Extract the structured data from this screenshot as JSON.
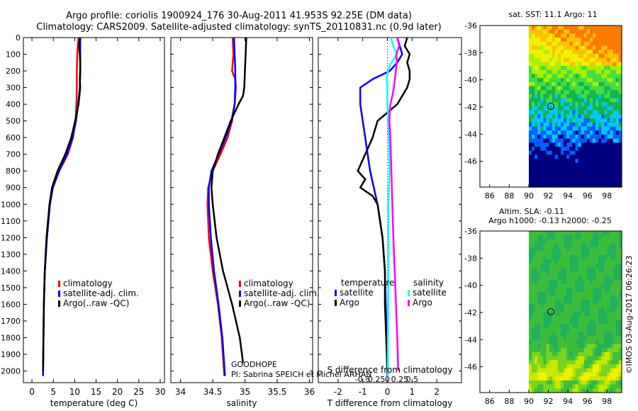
{
  "header": {
    "title": "Argo profile: coriolis 1900924_176 30-Aug-2011 41.953S 92.25E (DM data)",
    "subtitle": "Climatology: CARS2009. Satellite-adjusted climatology: synTS_20110831.nc (0.9d later)"
  },
  "colors": {
    "climatology": "#ff0000",
    "satellite": "#0000ff",
    "argo": "#000000",
    "satellite_salinity": "#00ffff",
    "argo_salinity": "#ff00ff"
  },
  "annotations": {
    "project": "GOODHOPE",
    "pi": "PI: Sabrina SPEICH et Michel ARHAN",
    "credit": "©IMOS 03-Aug-2017 06:26:23"
  },
  "chart_data": [
    {
      "type": "line",
      "name": "temperature-profile",
      "xlabel": "temperature (deg C)",
      "ylabel": "",
      "xlim": [
        -2,
        31
      ],
      "ylim": [
        2070,
        0
      ],
      "xticks": [
        0,
        5,
        10,
        15,
        20,
        25,
        30
      ],
      "yticks": [
        0,
        100,
        200,
        300,
        400,
        500,
        600,
        700,
        800,
        900,
        1000,
        1100,
        1200,
        1300,
        1400,
        1500,
        1600,
        1700,
        1800,
        1900,
        2000
      ],
      "legend": [
        "climatology",
        "satellite-adj. clim.",
        "Argo(..raw -QC)"
      ],
      "legend_position": "lower-center",
      "series": [
        {
          "name": "climatology",
          "depth": [
            0,
            100,
            200,
            300,
            400,
            500,
            600,
            700,
            800,
            900,
            1000,
            1200,
            1400,
            1600,
            1800,
            2030
          ],
          "values": [
            10.9,
            10.6,
            10.5,
            10.5,
            10.4,
            10.2,
            9.6,
            8.4,
            6.4,
            4.9,
            4.2,
            3.5,
            3.0,
            2.8,
            2.7,
            2.6
          ]
        },
        {
          "name": "satellite-adj. clim.",
          "depth": [
            0,
            100,
            200,
            300,
            400,
            500,
            600,
            700,
            800,
            900,
            1000,
            1200,
            1400,
            1600,
            1800,
            2030
          ],
          "values": [
            11.3,
            11.3,
            11.3,
            11.2,
            10.8,
            10.3,
            9.5,
            8.2,
            6.3,
            4.9,
            4.2,
            3.5,
            3.0,
            2.8,
            2.7,
            2.6
          ]
        },
        {
          "name": "Argo(..raw -QC)",
          "depth": [
            0,
            50,
            100,
            150,
            200,
            250,
            300,
            350,
            400,
            500,
            600,
            700,
            800,
            900,
            1000,
            1200,
            1400,
            1600,
            1800,
            2000
          ],
          "values": [
            11.2,
            11.0,
            11.2,
            11.3,
            11.3,
            11.2,
            11.3,
            11.1,
            10.9,
            10.1,
            9.2,
            7.8,
            6.0,
            4.7,
            4.1,
            3.4,
            3.0,
            2.8,
            2.7,
            2.6
          ]
        }
      ]
    },
    {
      "type": "line",
      "name": "salinity-profile",
      "xlabel": "salinity",
      "ylabel": "",
      "xlim": [
        33.85,
        36.05
      ],
      "ylim": [
        2070,
        0
      ],
      "xticks": [
        34,
        34.5,
        35,
        35.5,
        36
      ],
      "legend": [
        "climatology",
        "satellite-adj. clim.",
        "Argo(..raw -QC)"
      ],
      "legend_position": "lower-center",
      "series": [
        {
          "name": "climatology",
          "depth": [
            0,
            100,
            150,
            200,
            250,
            300,
            400,
            500,
            600,
            700,
            800,
            900,
            1000,
            1200,
            1400,
            1600,
            1800,
            2030
          ],
          "values": [
            34.81,
            34.82,
            34.81,
            34.8,
            34.85,
            34.86,
            34.84,
            34.8,
            34.73,
            34.62,
            34.5,
            34.43,
            34.42,
            34.44,
            34.5,
            34.58,
            34.64,
            34.68
          ]
        },
        {
          "name": "satellite-adj. clim.",
          "depth": [
            0,
            100,
            200,
            300,
            400,
            500,
            600,
            700,
            800,
            900,
            1000,
            1200,
            1400,
            1600,
            1800,
            2030
          ],
          "values": [
            34.83,
            34.84,
            34.85,
            34.85,
            34.84,
            34.79,
            34.7,
            34.59,
            34.48,
            34.44,
            34.44,
            34.47,
            34.52,
            34.59,
            34.65,
            34.69
          ]
        },
        {
          "name": "Argo(..raw -QC)",
          "depth": [
            0,
            100,
            200,
            300,
            350,
            400,
            500,
            600,
            700,
            800,
            900,
            1000,
            1200,
            1400,
            1600,
            1800,
            1950
          ],
          "values": [
            35.02,
            35.01,
            35.0,
            34.99,
            34.97,
            34.9,
            34.78,
            34.68,
            34.58,
            34.5,
            34.48,
            34.5,
            34.56,
            34.66,
            34.8,
            34.92,
            34.97
          ]
        }
      ]
    },
    {
      "type": "line",
      "name": "difference-profile",
      "xlabel": "T difference from climatology",
      "xlabel_top": "S difference from climatology",
      "xlim": [
        -2.8,
        3.0
      ],
      "ylim": [
        2070,
        0
      ],
      "xticks": [
        -2,
        -1,
        0,
        1,
        2
      ],
      "xticks_salinity": [
        -0.5,
        -0.25,
        0,
        0.25,
        0.5
      ],
      "legend_groups": [
        {
          "title": "temperature",
          "items": [
            "satellite",
            "Argo"
          ]
        },
        {
          "title": "salinity",
          "items": [
            "satellite",
            "Argo"
          ]
        }
      ],
      "series": [
        {
          "name": "temperature satellite",
          "depth": [
            0,
            50,
            100,
            150,
            200,
            250,
            300,
            400,
            500,
            600,
            800,
            1000,
            1200,
            1400,
            1700,
            2030
          ],
          "values": [
            0.4,
            0.5,
            0.6,
            0.4,
            0.1,
            -0.6,
            -1.1,
            -1.1,
            -1.0,
            -0.9,
            -0.7,
            -0.4,
            -0.2,
            -0.1,
            -0.05,
            0.0
          ]
        },
        {
          "name": "temperature Argo",
          "depth": [
            0,
            50,
            100,
            150,
            200,
            250,
            300,
            350,
            400,
            450,
            500,
            600,
            700,
            800,
            850,
            900,
            950,
            1000,
            1100,
            1200,
            1400,
            1600,
            1800,
            2000
          ],
          "values": [
            0.8,
            0.7,
            0.9,
            0.8,
            0.9,
            0.9,
            0.8,
            0.6,
            0.4,
            0.0,
            -0.4,
            -0.6,
            -0.9,
            -1.2,
            -0.9,
            -1.1,
            -0.6,
            -0.4,
            -0.3,
            -0.2,
            -0.1,
            -0.1,
            -0.05,
            0.0
          ]
        },
        {
          "name": "salinity satellite",
          "depth": [
            0,
            50,
            100,
            150,
            200,
            250,
            300,
            400,
            500,
            600,
            800,
            1000,
            1200,
            1500,
            1800,
            2030
          ],
          "values": [
            0.07,
            0.12,
            0.2,
            0.08,
            0.01,
            -0.01,
            0.0,
            0.0,
            0.02,
            0.03,
            0.04,
            0.02,
            0.02,
            0.02,
            0.01,
            0.01
          ]
        },
        {
          "name": "salinity Argo",
          "depth": [
            0,
            50,
            100,
            150,
            200,
            250,
            300,
            350,
            400,
            500,
            600,
            800,
            1000,
            1200,
            1500,
            1800,
            2000
          ],
          "values": [
            0.2,
            0.24,
            0.18,
            0.19,
            0.17,
            0.15,
            0.13,
            0.1,
            0.06,
            0.04,
            0.06,
            0.08,
            0.1,
            0.12,
            0.16,
            0.2,
            0.22
          ]
        }
      ]
    },
    {
      "type": "heatmap",
      "name": "sst-map",
      "title": "sat. SST: 11.1  Argo: 11",
      "xlim": [
        85,
        99.5
      ],
      "ylim": [
        -47.9,
        -36
      ],
      "xticks": [
        86,
        88,
        90,
        92,
        94,
        96,
        98
      ],
      "yticks": [
        -36,
        -38,
        -40,
        -42,
        -44,
        -46
      ],
      "data_lon_range": [
        90,
        99.5
      ],
      "marker": {
        "lon": 92.25,
        "lat": -41.95
      },
      "palette": [
        "#00007f",
        "#0060ff",
        "#00c8ff",
        "#14b448",
        "#44dc44",
        "#aaf000",
        "#f0f000",
        "#ffc000",
        "#ff7a00"
      ]
    },
    {
      "type": "heatmap",
      "name": "sla-map",
      "title": "Altim. SLA: -0.11",
      "subtitle": "Argo h1000: -0.13 h2000: -0.25",
      "xlim": [
        85,
        99.5
      ],
      "ylim": [
        -47.9,
        -36
      ],
      "xticks": [
        86,
        88,
        90,
        92,
        94,
        96,
        98
      ],
      "yticks": [
        -36,
        -38,
        -40,
        -42,
        -44,
        -46
      ],
      "data_lon_range": [
        90,
        99.5
      ],
      "marker": {
        "lon": 92.25,
        "lat": -41.95
      },
      "palette": [
        "#12a880",
        "#22b05a",
        "#3cbe3c",
        "#78d420",
        "#c8e800",
        "#f0f000"
      ]
    }
  ]
}
